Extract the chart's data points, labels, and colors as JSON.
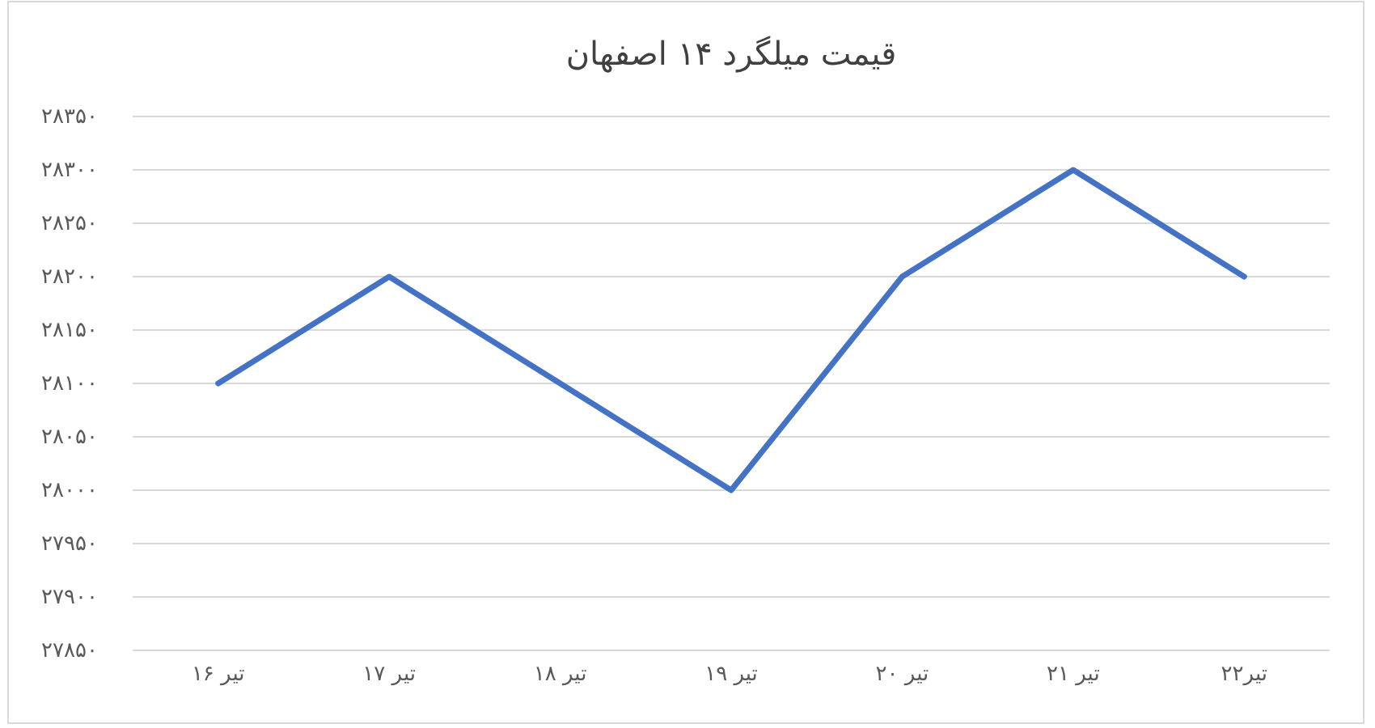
{
  "chart_data": {
    "type": "line",
    "title": "قیمت میلگرد ۱۴ اصفهان",
    "categories": [
      "تیر ۱۶",
      "تیر ۱۷",
      "تیر ۱۸",
      "تیر ۱۹",
      "تیر ۲۰",
      "تیر ۲۱",
      "تیر۲۲"
    ],
    "series": [
      {
        "color": "#4472c4",
        "values": [
          28100,
          28200,
          28100,
          28000,
          28200,
          28300,
          28200
        ]
      }
    ],
    "ylim": [
      27850,
      28350
    ],
    "yticks": [
      {
        "value": 27850,
        "label": "۲۷۸۵۰"
      },
      {
        "value": 27900,
        "label": "۲۷۹۰۰"
      },
      {
        "value": 27950,
        "label": "۲۷۹۵۰"
      },
      {
        "value": 28000,
        "label": "۲۸۰۰۰"
      },
      {
        "value": 28050,
        "label": "۲۸۰۵۰"
      },
      {
        "value": 28100,
        "label": "۲۸۱۰۰"
      },
      {
        "value": 28150,
        "label": "۲۸۱۵۰"
      },
      {
        "value": 28200,
        "label": "۲۸۲۰۰"
      },
      {
        "value": 28250,
        "label": "۲۸۲۵۰"
      },
      {
        "value": 28300,
        "label": "۲۸۳۰۰"
      },
      {
        "value": 28350,
        "label": "۲۸۳۵۰"
      }
    ],
    "grid": "y",
    "marker": "none",
    "line_style": "solid"
  }
}
